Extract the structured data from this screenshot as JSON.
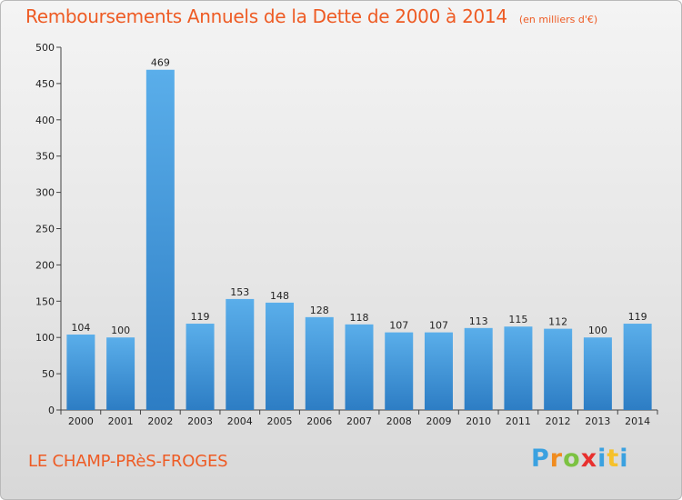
{
  "colors": {
    "title": "#ee5b24",
    "bar_light": "#5aaeea",
    "bar_dark": "#2d7dc4",
    "axis": "#444444",
    "logo": [
      "#3aa1e0",
      "#f08c1f",
      "#7cc242",
      "#e8302e",
      "#3aa1e0",
      "#f6c12b"
    ]
  },
  "header": {
    "title": "Remboursements Annuels de la Dette de 2000 à 2014",
    "unit": "(en milliers d'€)"
  },
  "footer": {
    "commune": "LE CHAMP-PRèS-FROGES",
    "brand_letters": [
      "P",
      "r",
      "o",
      "x",
      "i",
      "t",
      "i"
    ]
  },
  "chart_data": {
    "type": "bar",
    "title": "Remboursements Annuels de la Dette de 2000 à 2014",
    "subtitle": "(en milliers d'€)",
    "xlabel": "",
    "ylabel": "",
    "categories": [
      "2000",
      "2001",
      "2002",
      "2003",
      "2004",
      "2005",
      "2006",
      "2007",
      "2008",
      "2009",
      "2010",
      "2011",
      "2012",
      "2013",
      "2014"
    ],
    "values": [
      104,
      100,
      469,
      119,
      153,
      148,
      128,
      118,
      107,
      107,
      113,
      115,
      112,
      100,
      119
    ],
    "ylim": [
      0,
      500
    ],
    "yticks": [
      0,
      50,
      100,
      150,
      200,
      250,
      300,
      350,
      400,
      450,
      500
    ],
    "grid": false,
    "legend": "none"
  }
}
